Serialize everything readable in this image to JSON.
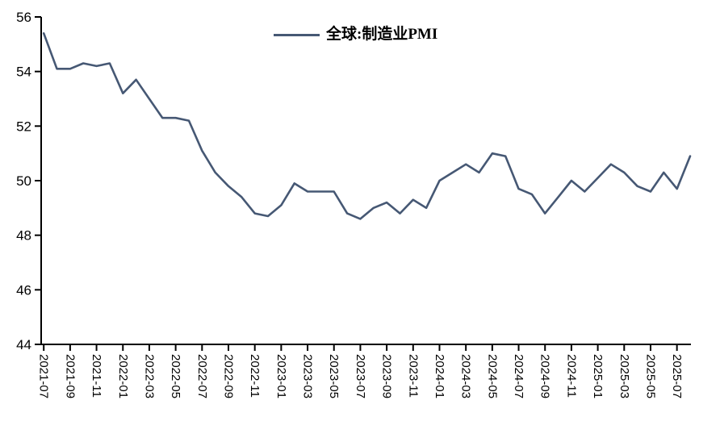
{
  "chart_data": {
    "type": "line",
    "title": "",
    "xlabel": "",
    "ylabel": "",
    "ylim": [
      44,
      56
    ],
    "y_ticks": [
      56,
      54,
      52,
      50,
      48,
      46,
      44
    ],
    "grid": false,
    "legend_position": "top-center",
    "x_tick_labels": [
      "2021-07",
      "2021-09",
      "2021-11",
      "2022-01",
      "2022-03",
      "2022-05",
      "2022-07",
      "2022-09",
      "2022-11",
      "2023-01",
      "2023-03",
      "2023-05",
      "2023-07",
      "2023-09",
      "2023-11",
      "2024-01",
      "2024-03",
      "2024-05",
      "2024-07",
      "2024-09",
      "2024-11",
      "2025-01",
      "2025-03",
      "2025-05",
      "2025-07"
    ],
    "x": [
      "2021-07",
      "2021-08",
      "2021-09",
      "2021-10",
      "2021-11",
      "2021-12",
      "2022-01",
      "2022-02",
      "2022-03",
      "2022-04",
      "2022-05",
      "2022-06",
      "2022-07",
      "2022-08",
      "2022-09",
      "2022-10",
      "2022-11",
      "2022-12",
      "2023-01",
      "2023-02",
      "2023-03",
      "2023-04",
      "2023-05",
      "2023-06",
      "2023-07",
      "2023-08",
      "2023-09",
      "2023-10",
      "2023-11",
      "2023-12",
      "2024-01",
      "2024-02",
      "2024-03",
      "2024-04",
      "2024-05",
      "2024-06",
      "2024-07",
      "2024-08",
      "2024-09",
      "2024-10",
      "2024-11",
      "2024-12",
      "2025-01",
      "2025-02",
      "2025-03",
      "2025-04",
      "2025-05",
      "2025-06",
      "2025-07",
      "2025-08"
    ],
    "series": [
      {
        "name": "全球:制造业PMI",
        "color": "#465874",
        "values": [
          55.4,
          54.1,
          54.1,
          54.3,
          54.2,
          54.3,
          53.2,
          53.7,
          53.0,
          52.3,
          52.3,
          52.2,
          51.1,
          50.3,
          49.8,
          49.4,
          48.8,
          48.7,
          49.1,
          49.9,
          49.6,
          49.6,
          49.6,
          48.8,
          48.6,
          49.0,
          49.2,
          48.8,
          49.3,
          49.0,
          50.0,
          50.3,
          50.6,
          50.3,
          51.0,
          50.9,
          49.7,
          49.5,
          48.8,
          49.4,
          50.0,
          49.6,
          50.1,
          50.6,
          50.3,
          49.8,
          49.6,
          50.3,
          49.7,
          50.9
        ]
      }
    ],
    "axis_color": "#000000",
    "background_color": "#ffffff"
  }
}
